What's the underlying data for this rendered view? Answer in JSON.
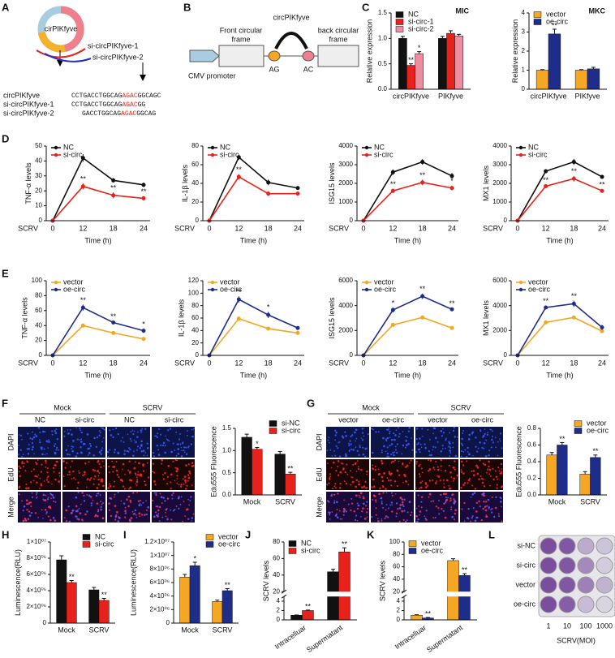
{
  "panel_labels": [
    "A",
    "B",
    "C",
    "D",
    "E",
    "F",
    "G",
    "H",
    "I",
    "J",
    "K",
    "L"
  ],
  "panel_a": {
    "ring_label": "cirPIKfyve",
    "probes": [
      "si-circPIKfyve-1",
      "si-circPIKfyve-2"
    ],
    "sequences": [
      {
        "name": "circPIKfyve",
        "parts": [
          "CCTGACCTGGCAG",
          "AGAC",
          "GGCAGC"
        ]
      },
      {
        "name": "si-circPIKfyve-1",
        "parts": [
          "CCTGACCTGGCAG",
          "AGAC",
          "GG"
        ]
      },
      {
        "name": "si-circPIKfyve-2",
        "parts": [
          "GACCTGGCAG",
          "AGAC",
          "GGCAG"
        ]
      }
    ]
  },
  "panel_b": {
    "circ_label": "circPIKfyve",
    "front": [
      "Front circular",
      "frame"
    ],
    "back": [
      "back circular",
      "frame"
    ],
    "promoter": "CMV promoter",
    "sites": [
      "AG",
      "AC"
    ]
  },
  "panel_f_images": {
    "conditions": [
      "Mock",
      "SCRV"
    ],
    "groups": [
      "NC",
      "si-circ",
      "NC",
      "si-circ"
    ],
    "stains": [
      "DAPI",
      "EdU",
      "Merge"
    ]
  },
  "panel_g_images": {
    "conditions": [
      "Mock",
      "SCRV"
    ],
    "groups": [
      "vector",
      "oe-circ",
      "vector",
      "oe-circ"
    ],
    "stains": [
      "DAPI",
      "EdU",
      "Merge"
    ]
  },
  "panel_l": {
    "rows": [
      "si-NC",
      "si-circ",
      "vector",
      "oe-circ"
    ],
    "columns": [
      "1",
      "10",
      "100",
      "1000"
    ],
    "xlabel": "SCRV(MOI)"
  },
  "chart_data": [
    {
      "type": "bar",
      "title": "MIC",
      "ylabel": "Relative expression",
      "categories": [
        "circPIKfyve",
        "PIKfyve"
      ],
      "ylim": [
        0,
        1.5
      ],
      "yticks": [
        {
          "value": 0,
          "label": "0.0"
        },
        0.5,
        {
          "value": 1,
          "label": "1.0"
        },
        1.5
      ],
      "legend": "top-left",
      "series": [
        {
          "name": "NC",
          "color": "#111111",
          "values": [
            1.0,
            1.0
          ],
          "errors": [
            0.04,
            0.04
          ],
          "annotations": [
            null,
            null
          ]
        },
        {
          "name": "si-circ-1",
          "color": "#e8221a",
          "values": [
            0.47,
            1.1
          ],
          "errors": [
            0.03,
            0.05
          ],
          "annotations": [
            "**",
            null
          ]
        },
        {
          "name": "si-circ-2",
          "color": "#f08ca0",
          "values": [
            0.7,
            1.05
          ],
          "errors": [
            0.04,
            0.03
          ],
          "annotations": [
            "*",
            null
          ]
        }
      ]
    },
    {
      "type": "bar",
      "title": "MKC",
      "ylabel": "Relative expression",
      "categories": [
        "circPIKfyve",
        "PIKfyve"
      ],
      "ylim": [
        0,
        4
      ],
      "yticks": [
        0,
        1,
        2,
        3,
        4
      ],
      "legend": "top-left",
      "series": [
        {
          "name": "vector",
          "color": "#f5a623",
          "values": [
            1.0,
            1.0
          ],
          "errors": [
            0.03,
            0.03
          ],
          "annotations": [
            null,
            null
          ]
        },
        {
          "name": "oe-circ",
          "color": "#1f2d8a",
          "values": [
            2.9,
            1.07
          ],
          "errors": [
            0.25,
            0.08
          ],
          "annotations": [
            "**",
            null
          ]
        }
      ]
    },
    {
      "type": "line",
      "ylabel": "TNF-α levels",
      "xlabel": "Time (h)",
      "x_prefix": "SCRV",
      "categories": [
        "0",
        "12",
        "18",
        "24"
      ],
      "ylim": [
        0,
        50
      ],
      "yticks": [
        0,
        10,
        20,
        30,
        40,
        50
      ],
      "legend": "top-left",
      "series": [
        {
          "name": "NC",
          "color": "#111111",
          "values": [
            0,
            42,
            27,
            24
          ],
          "errors": [
            0,
            2.5,
            1.5,
            1.5
          ],
          "annotations": [
            null,
            null,
            null,
            null
          ]
        },
        {
          "name": "si-circ",
          "color": "#e8221a",
          "values": [
            0,
            23,
            17,
            15
          ],
          "errors": [
            0,
            2,
            2,
            1.5
          ],
          "annotations": [
            null,
            "**",
            "**",
            "**"
          ]
        }
      ]
    },
    {
      "type": "line",
      "ylabel": "IL-1β levels",
      "xlabel": "Time (h)",
      "x_prefix": "SCRV",
      "categories": [
        "0",
        "12",
        "18",
        "24"
      ],
      "ylim": [
        0,
        80
      ],
      "yticks": [
        0,
        20,
        40,
        60,
        80
      ],
      "legend": "top-left",
      "series": [
        {
          "name": "NC",
          "color": "#111111",
          "values": [
            0,
            68,
            41,
            35
          ],
          "errors": [
            0,
            3,
            3,
            1.5
          ],
          "annotations": [
            null,
            null,
            null,
            null
          ]
        },
        {
          "name": "si-circ",
          "color": "#e8221a",
          "values": [
            0,
            47,
            29,
            29
          ],
          "errors": [
            0,
            3,
            2.5,
            2
          ],
          "annotations": [
            null,
            "**",
            null,
            null
          ]
        }
      ]
    },
    {
      "type": "line",
      "ylabel": "ISG15 levels",
      "xlabel": "Time (h)",
      "x_prefix": "SCRV",
      "categories": [
        "0",
        "12",
        "18",
        "24"
      ],
      "ylim": [
        0,
        4000
      ],
      "yticks": [
        0,
        1000,
        2000,
        3000,
        4000
      ],
      "legend": "top-left",
      "series": [
        {
          "name": "NC",
          "color": "#111111",
          "values": [
            0,
            2600,
            3150,
            2400
          ],
          "errors": [
            0,
            150,
            150,
            150
          ],
          "annotations": [
            null,
            null,
            null,
            null
          ]
        },
        {
          "name": "si-circ",
          "color": "#e8221a",
          "values": [
            0,
            1600,
            2050,
            1750
          ],
          "errors": [
            0,
            120,
            150,
            130
          ],
          "annotations": [
            null,
            "**",
            "**",
            "*"
          ]
        }
      ]
    },
    {
      "type": "line",
      "ylabel": "MX1 levels",
      "xlabel": "Time (h)",
      "x_prefix": "SCRV",
      "categories": [
        "0",
        "12",
        "18",
        "24"
      ],
      "ylim": [
        0,
        4000
      ],
      "yticks": [
        0,
        1000,
        2000,
        3000,
        4000
      ],
      "legend": "top-left",
      "series": [
        {
          "name": "NC",
          "color": "#111111",
          "values": [
            0,
            2650,
            3150,
            2350
          ],
          "errors": [
            0,
            80,
            160,
            100
          ],
          "annotations": [
            null,
            null,
            null,
            null
          ]
        },
        {
          "name": "si-circ",
          "color": "#e8221a",
          "values": [
            0,
            1850,
            2250,
            1600
          ],
          "errors": [
            0,
            80,
            150,
            100
          ],
          "annotations": [
            null,
            "**",
            "**",
            "**"
          ]
        }
      ]
    },
    {
      "type": "line",
      "ylabel": "TNF-α levels",
      "xlabel": "Time (h)",
      "x_prefix": "SCRV",
      "categories": [
        "0",
        "12",
        "18",
        "24"
      ],
      "ylim": [
        0,
        100
      ],
      "yticks": [
        0,
        20,
        40,
        60,
        80,
        100
      ],
      "legend": "top-left",
      "series": [
        {
          "name": "vector",
          "color": "#f5a623",
          "values": [
            0,
            40,
            30,
            22
          ],
          "errors": [
            0,
            2,
            1.5,
            1.5
          ],
          "annotations": [
            null,
            null,
            null,
            null
          ]
        },
        {
          "name": "oe-circ",
          "color": "#1f2d8a",
          "values": [
            0,
            64,
            44,
            33
          ],
          "errors": [
            0,
            4,
            2,
            3
          ],
          "annotations": [
            null,
            "**",
            "**",
            "*"
          ]
        }
      ]
    },
    {
      "type": "line",
      "ylabel": "IL-1β levels",
      "xlabel": "Time (h)",
      "x_prefix": "SCRV",
      "categories": [
        "0",
        "12",
        "18",
        "24"
      ],
      "ylim": [
        0,
        120
      ],
      "yticks": [
        0,
        20,
        40,
        60,
        80,
        100,
        120
      ],
      "legend": "top-left",
      "series": [
        {
          "name": "vector",
          "color": "#f5a623",
          "values": [
            0,
            59,
            43,
            36
          ],
          "errors": [
            0,
            4,
            2,
            1.5
          ],
          "annotations": [
            null,
            null,
            null,
            null
          ]
        },
        {
          "name": "oe-circ",
          "color": "#1f2d8a",
          "values": [
            0,
            90,
            65,
            44
          ],
          "errors": [
            0,
            5,
            5,
            3
          ],
          "annotations": [
            null,
            "**",
            "*",
            null
          ]
        }
      ]
    },
    {
      "type": "line",
      "ylabel": "ISG15 levels",
      "xlabel": "Time (h)",
      "x_prefix": "SCRV",
      "categories": [
        "0",
        "12",
        "18",
        "24"
      ],
      "ylim": [
        0,
        6000
      ],
      "yticks": [
        0,
        2000,
        4000,
        6000
      ],
      "legend": "top-left",
      "series": [
        {
          "name": "vector",
          "color": "#f5a623",
          "values": [
            0,
            2450,
            3050,
            2200
          ],
          "errors": [
            0,
            150,
            150,
            120
          ],
          "annotations": [
            null,
            null,
            null,
            null
          ]
        },
        {
          "name": "oe-circ",
          "color": "#1f2d8a",
          "values": [
            0,
            3650,
            4750,
            3700
          ],
          "errors": [
            0,
            200,
            220,
            120
          ],
          "annotations": [
            null,
            "*",
            "**",
            "**"
          ]
        }
      ]
    },
    {
      "type": "line",
      "ylabel": "MX1 levels",
      "xlabel": "Time (h)",
      "x_prefix": "SCRV",
      "categories": [
        "0",
        "12",
        "18",
        "24"
      ],
      "ylim": [
        0,
        6000
      ],
      "yticks": [
        0,
        2000,
        4000,
        6000
      ],
      "legend": "top-left",
      "series": [
        {
          "name": "vector",
          "color": "#f5a623",
          "values": [
            0,
            2650,
            3050,
            1950
          ],
          "errors": [
            0,
            120,
            100,
            120
          ],
          "annotations": [
            null,
            null,
            null,
            null
          ]
        },
        {
          "name": "oe-circ",
          "color": "#1f2d8a",
          "values": [
            0,
            3850,
            4150,
            2250
          ],
          "errors": [
            0,
            150,
            250,
            200
          ],
          "annotations": [
            null,
            "**",
            "**",
            null
          ]
        }
      ]
    },
    {
      "type": "bar",
      "ylabel": "Edu555 Fluorescence",
      "categories": [
        "Mock",
        "SCRV"
      ],
      "ylim": [
        0,
        1.5
      ],
      "yticks": [
        {
          "value": 0,
          "label": "0.0"
        },
        0.5,
        {
          "value": 1,
          "label": "1.0"
        },
        1.5
      ],
      "legend": "top-right",
      "series": [
        {
          "name": "si-NC",
          "color": "#111111",
          "values": [
            1.3,
            0.92
          ],
          "errors": [
            0.07,
            0.06
          ],
          "annotations": [
            null,
            null
          ]
        },
        {
          "name": "si-circ",
          "color": "#e8221a",
          "values": [
            1.03,
            0.47
          ],
          "errors": [
            0.04,
            0.04
          ],
          "annotations": [
            "*",
            "**"
          ]
        }
      ]
    },
    {
      "type": "bar",
      "ylabel": "Edu555 Fluorescence",
      "categories": [
        "Mock",
        "SCRV"
      ],
      "ylim": [
        0,
        0.8
      ],
      "yticks": [
        {
          "value": 0,
          "label": "0.0"
        },
        0.2,
        0.4,
        0.6,
        0.8
      ],
      "legend": "top-right",
      "series": [
        {
          "name": "vector",
          "color": "#f5a623",
          "values": [
            0.48,
            0.25
          ],
          "errors": [
            0.03,
            0.03
          ],
          "annotations": [
            null,
            null
          ]
        },
        {
          "name": "oe-circ",
          "color": "#1f2d8a",
          "values": [
            0.6,
            0.45
          ],
          "errors": [
            0.03,
            0.03
          ],
          "annotations": [
            "**",
            "**"
          ]
        }
      ]
    },
    {
      "type": "bar",
      "ylabel": "Luminescence(RLU)",
      "categories": [
        "Mock",
        "SCRV"
      ],
      "ylim": [
        0,
        10000000
      ],
      "yticks": [
        0,
        {
          "value": 2000000,
          "label": "2×10⁰⁶"
        },
        {
          "value": 4000000,
          "label": "4×10⁰⁶"
        },
        {
          "value": 6000000,
          "label": "6×10⁰⁶"
        },
        {
          "value": 8000000,
          "label": "8×10⁰⁶"
        },
        {
          "value": 10000000,
          "label": "1×10⁰⁷"
        }
      ],
      "legend": "top-right",
      "series": [
        {
          "name": "NC",
          "color": "#111111",
          "values": [
            7800000,
            4100000
          ],
          "errors": [
            500000,
            300000
          ],
          "annotations": [
            null,
            null
          ]
        },
        {
          "name": "si-circ",
          "color": "#e8221a",
          "values": [
            5000000,
            2800000
          ],
          "errors": [
            250000,
            250000
          ],
          "annotations": [
            "**",
            "**"
          ]
        }
      ]
    },
    {
      "type": "bar",
      "ylabel": "Luminescence(RLU)",
      "categories": [
        "Mock",
        "SCRV"
      ],
      "ylim": [
        0,
        12000000
      ],
      "yticks": [
        0,
        {
          "value": 2000000,
          "label": "2×10⁰⁶"
        },
        {
          "value": 4000000,
          "label": "4×10⁰⁶"
        },
        {
          "value": 6000000,
          "label": "6×10⁰⁶"
        },
        {
          "value": 8000000,
          "label": "8×10⁰⁶"
        },
        {
          "value": 10000000,
          "label": "1×10⁰⁷"
        },
        {
          "value": 12000000,
          "label": "1.2×10⁰⁷"
        }
      ],
      "legend": "top-right",
      "series": [
        {
          "name": "vector",
          "color": "#f5a623",
          "values": [
            6800000,
            3200000
          ],
          "errors": [
            400000,
            200000
          ],
          "annotations": [
            null,
            null
          ]
        },
        {
          "name": "oe-circ",
          "color": "#1f2d8a",
          "values": [
            8500000,
            4800000
          ],
          "errors": [
            500000,
            300000
          ],
          "annotations": [
            "*",
            "**"
          ]
        }
      ]
    },
    {
      "type": "bar",
      "ylabel": "SCRV levels",
      "categories": [
        "Intracelluar",
        "Supermatant"
      ],
      "ylim": [
        0,
        80
      ],
      "ybreak": [
        5,
        20
      ],
      "yticks": [
        0,
        2,
        4,
        20,
        40,
        60,
        80
      ],
      "legend": "top-left",
      "series": [
        {
          "name": "NC",
          "color": "#111111",
          "values": [
            1.0,
            44
          ],
          "errors": [
            0.05,
            3
          ],
          "annotations": [
            null,
            null
          ]
        },
        {
          "name": "si-circ",
          "color": "#e8221a",
          "values": [
            2.0,
            68
          ],
          "errors": [
            0.1,
            5
          ],
          "annotations": [
            "**",
            "**"
          ]
        }
      ]
    },
    {
      "type": "bar",
      "ylabel": "SCRV levels",
      "categories": [
        "Intracelluar",
        "Supermatant"
      ],
      "ylim": [
        0,
        100
      ],
      "ybreak": [
        5,
        20
      ],
      "yticks": [
        0,
        2,
        4,
        20,
        40,
        60,
        80,
        100
      ],
      "legend": "top-left",
      "series": [
        {
          "name": "vector",
          "color": "#f5a623",
          "values": [
            1.0,
            70
          ],
          "errors": [
            0.1,
            3
          ],
          "annotations": [
            null,
            null
          ]
        },
        {
          "name": "oe-circ",
          "color": "#1f2d8a",
          "values": [
            0.4,
            46
          ],
          "errors": [
            0.1,
            3
          ],
          "annotations": [
            "**",
            "**"
          ]
        }
      ]
    }
  ]
}
